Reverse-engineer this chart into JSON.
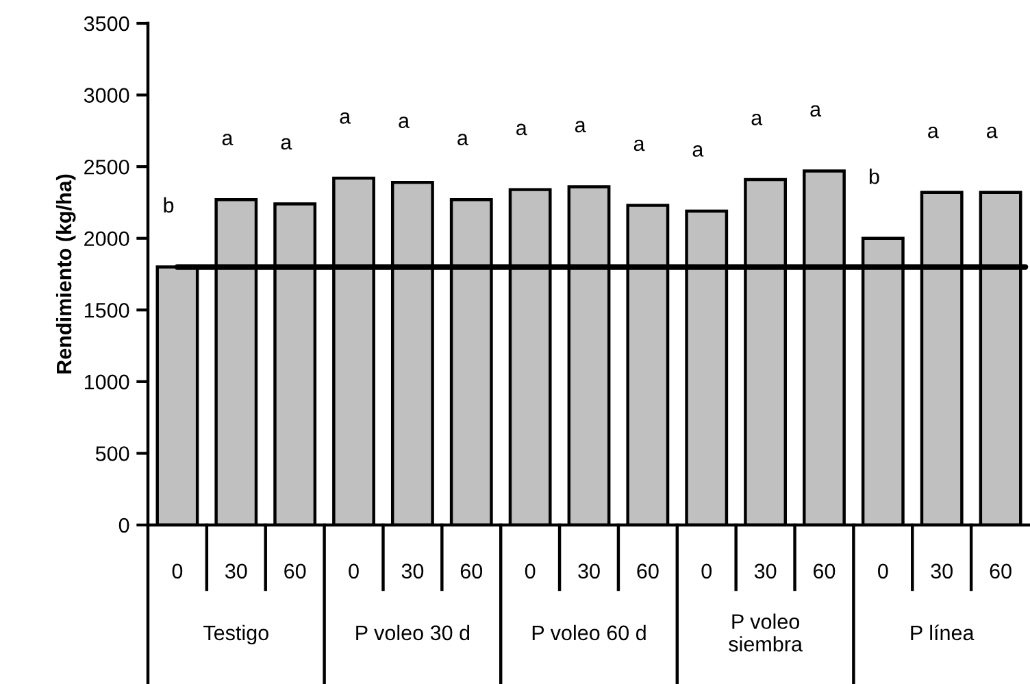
{
  "chart_data": {
    "type": "bar",
    "ylabel": "Rendimiento (kg/ha)",
    "categories": [
      "0",
      "30",
      "60",
      "0",
      "30",
      "60",
      "0",
      "30",
      "60",
      "0",
      "30",
      "60",
      "0",
      "30",
      "60"
    ],
    "values": [
      1800,
      2270,
      2240,
      2420,
      2390,
      2270,
      2340,
      2360,
      2230,
      2190,
      2410,
      2470,
      2000,
      2320,
      2320
    ],
    "value_labels": [
      "b",
      "a",
      "a",
      "a",
      "a",
      "a",
      "a",
      "a",
      "a",
      "a",
      "a",
      "a",
      "b",
      "a",
      "a"
    ],
    "color": "#c0c0c0",
    "ylim": [
      0,
      3500
    ],
    "yticks": [
      0,
      500,
      1000,
      1500,
      2000,
      2500,
      3000,
      3500
    ],
    "ref_lines": [
      {
        "axis": "y",
        "value": 1800,
        "color": "#000000"
      }
    ],
    "annotations": [
      "Testigo",
      "P voleo 30 d",
      "P voleo 60 d",
      "P voleo\nsiembra",
      "P línea"
    ],
    "grid": false
  }
}
